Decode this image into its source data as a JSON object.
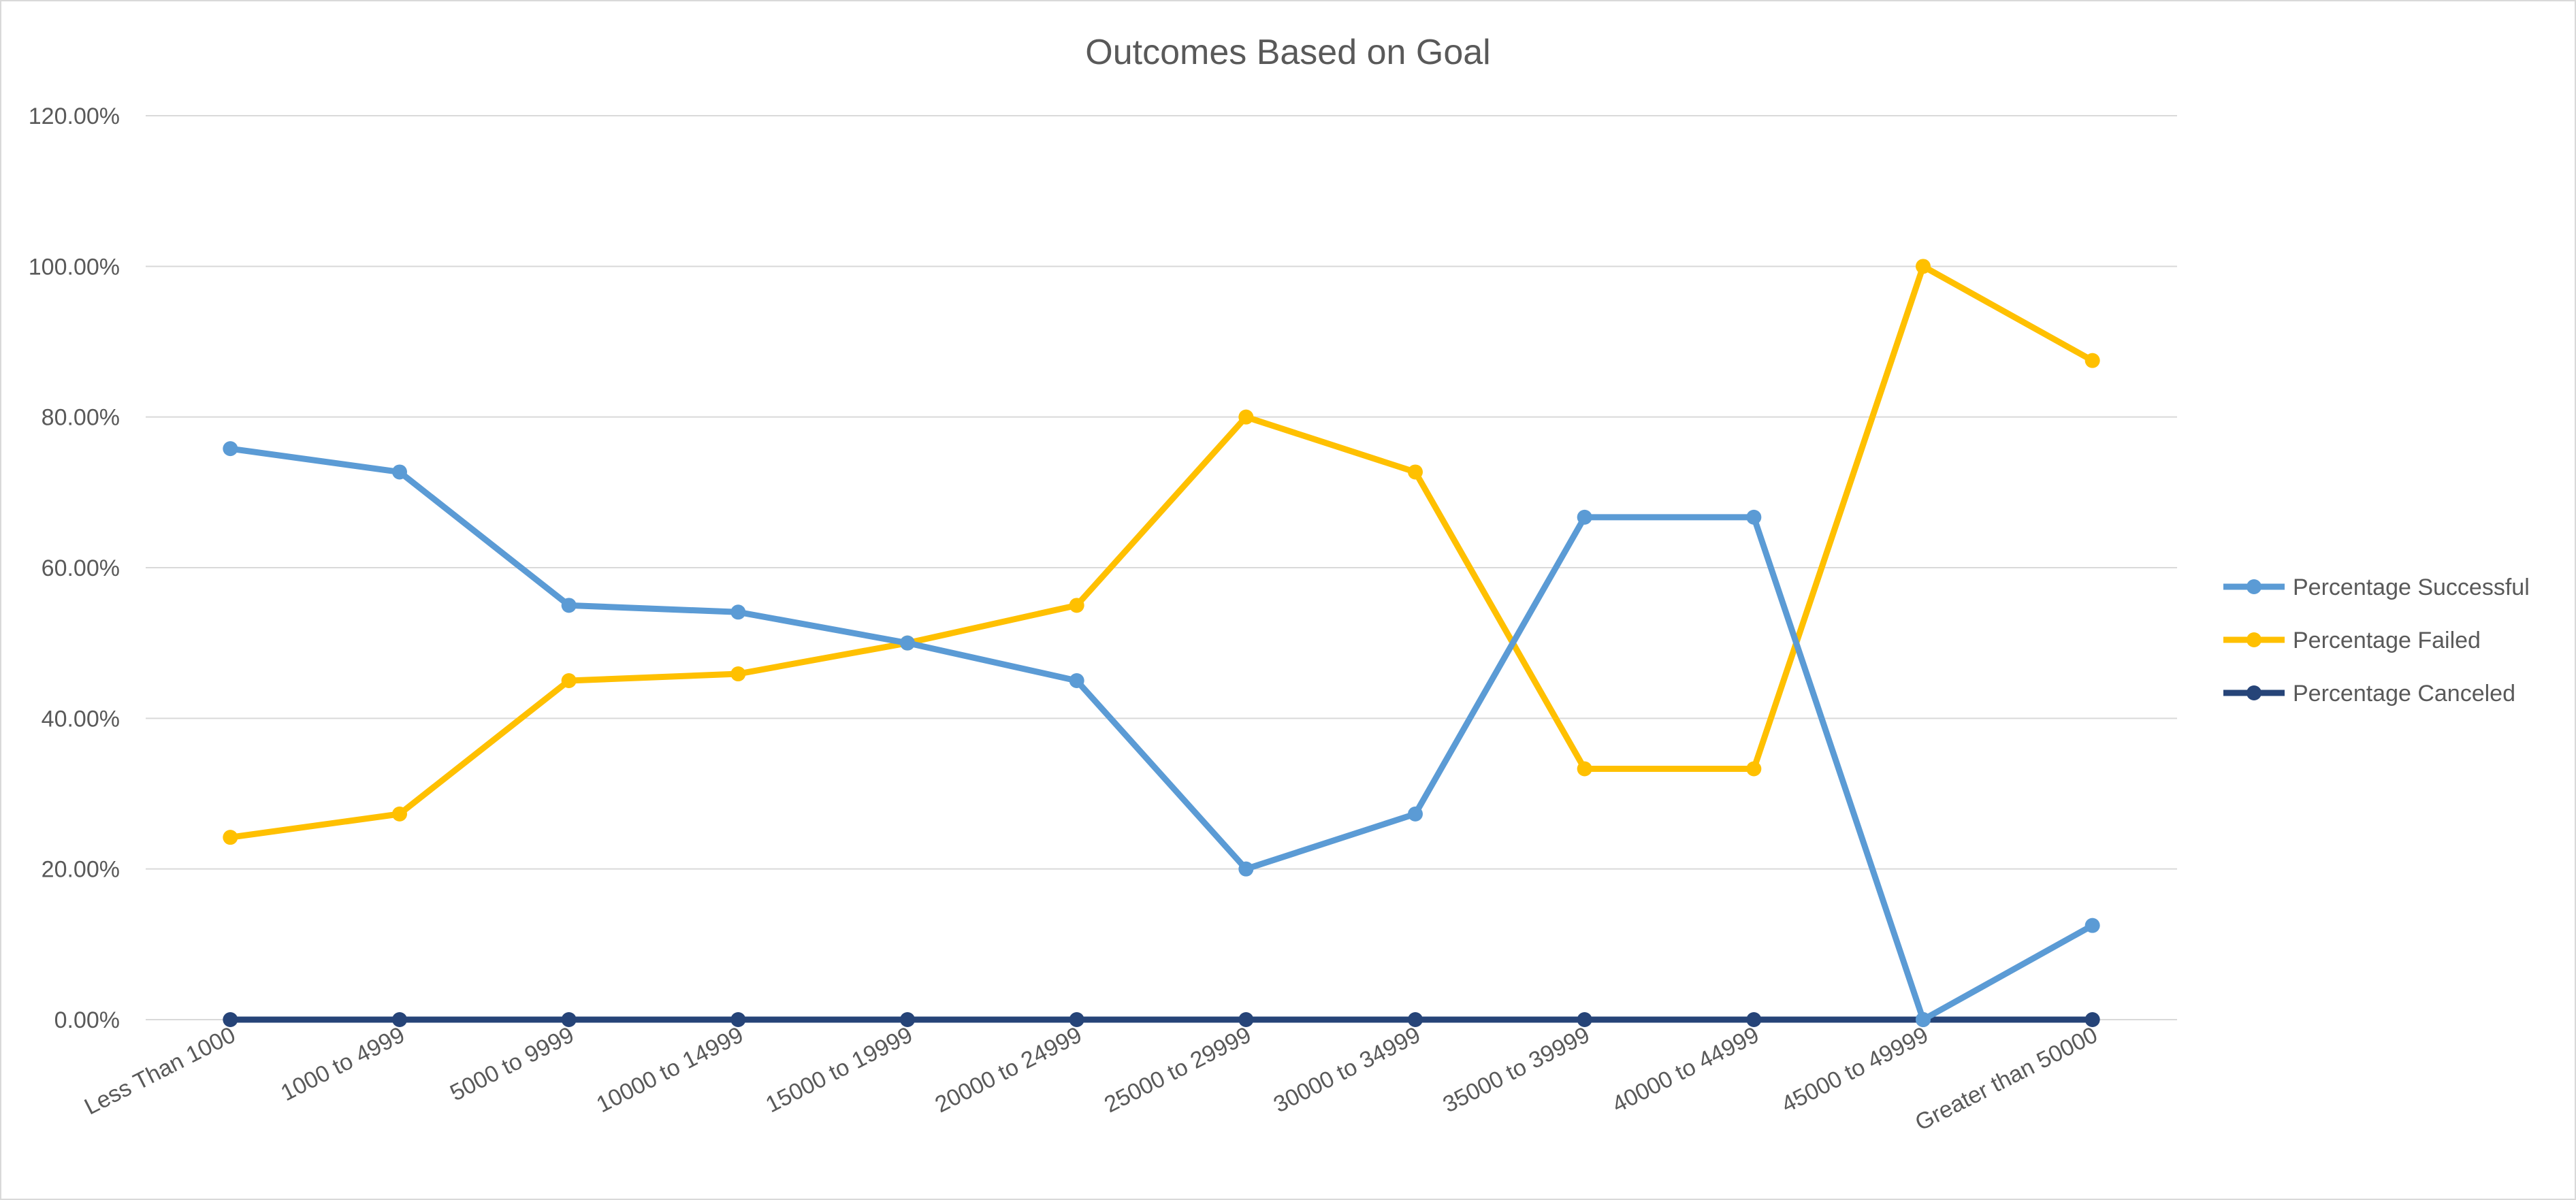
{
  "chart_data": {
    "type": "line",
    "title": "Outcomes Based on Goal",
    "xlabel": "",
    "ylabel": "",
    "categories": [
      "Less Than 1000",
      "1000 to 4999",
      "5000 to 9999",
      "10000 to 14999",
      "15000 to 19999",
      "20000 to 24999",
      "25000 to 29999",
      "30000 to 34999",
      "35000 to 39999",
      "40000 to 44999",
      "45000 to 49999",
      "Greater than 50000"
    ],
    "ylim": [
      0,
      1.2
    ],
    "yticks": [
      0,
      0.2,
      0.4,
      0.6,
      0.8,
      1.0,
      1.2
    ],
    "ytick_labels": [
      "0.00%",
      "20.00%",
      "40.00%",
      "60.00%",
      "80.00%",
      "100.00%",
      "120.00%"
    ],
    "grid": "horizontal",
    "legend_position": "right",
    "series": [
      {
        "name": "Percentage Successful",
        "color": "#5B9BD5",
        "values": [
          0.758,
          0.727,
          0.55,
          0.541,
          0.5,
          0.45,
          0.2,
          0.273,
          0.667,
          0.667,
          0.0,
          0.125
        ]
      },
      {
        "name": "Percentage Failed",
        "color": "#FFC000",
        "values": [
          0.242,
          0.273,
          0.45,
          0.459,
          0.5,
          0.55,
          0.8,
          0.727,
          0.333,
          0.333,
          1.0,
          0.875
        ]
      },
      {
        "name": "Percentage Canceled",
        "color": "#264478",
        "values": [
          0,
          0,
          0,
          0,
          0,
          0,
          0,
          0,
          0,
          0,
          0,
          0
        ]
      }
    ]
  },
  "colors": {
    "gridline": "#d9d9d9",
    "text": "#595959",
    "border": "#d9d9d9"
  }
}
